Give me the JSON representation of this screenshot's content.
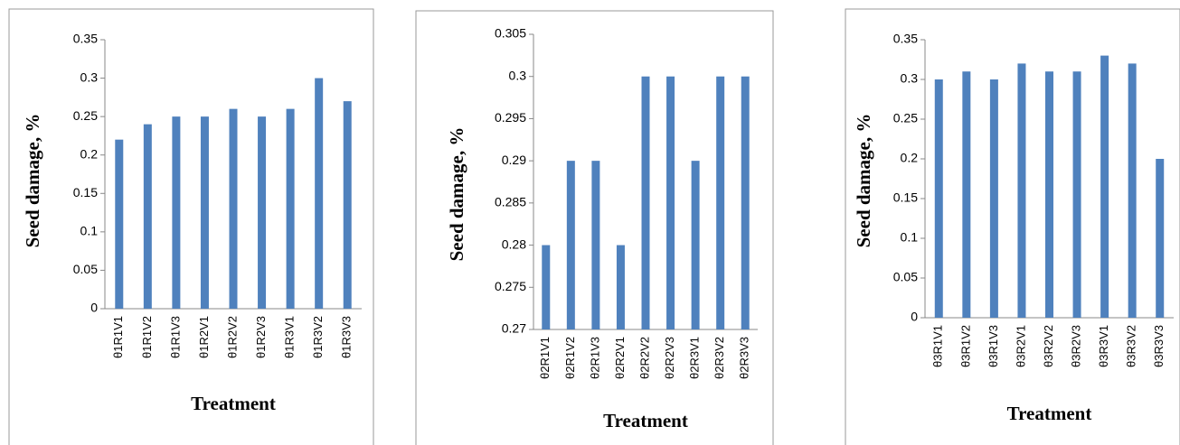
{
  "chart_data": [
    {
      "type": "bar",
      "y_label": "Seed damage, %",
      "x_label": "Treatment",
      "color": "#4f81bd",
      "categories": [
        "θ1R1V1",
        "θ1R1V2",
        "θ1R1V3",
        "θ1R2V1",
        "θ1R2V2",
        "θ1R2V3",
        "θ1R3V1",
        "θ1R3V2",
        "θ1R3V3"
      ],
      "values": [
        0.22,
        0.24,
        0.25,
        0.25,
        0.26,
        0.25,
        0.26,
        0.3,
        0.27
      ],
      "ylim": [
        0,
        0.35
      ],
      "yticks": [
        0,
        0.05,
        0.1,
        0.15,
        0.2,
        0.25,
        0.3,
        0.35
      ],
      "grid": false
    },
    {
      "type": "bar",
      "y_label": "Seed damage, %",
      "x_label": "Treatment",
      "color": "#4f81bd",
      "categories": [
        "θ2R1V1",
        "θ2R1V2",
        "θ2R1V3",
        "θ2R2V1",
        "θ2R2V2",
        "θ2R2V3",
        "θ2R3V1",
        "θ2R3V2",
        "θ2R3V3"
      ],
      "values": [
        0.28,
        0.29,
        0.29,
        0.28,
        0.3,
        0.3,
        0.29,
        0.3,
        0.3
      ],
      "ylim": [
        0.27,
        0.305
      ],
      "yticks": [
        0.27,
        0.275,
        0.28,
        0.285,
        0.29,
        0.295,
        0.3,
        0.305
      ],
      "grid": false
    },
    {
      "type": "bar",
      "y_label": "Seed damage, %",
      "x_label": "Treatment",
      "color": "#4f81bd",
      "categories": [
        "θ3R1V1",
        "θ3R1V2",
        "θ3R1V3",
        "θ3R2V1",
        "θ3R2V2",
        "θ3R2V3",
        "θ3R3V1",
        "θ3R3V2",
        "θ3R3V3"
      ],
      "values": [
        0.3,
        0.31,
        0.3,
        0.32,
        0.31,
        0.31,
        0.33,
        0.32,
        0.2
      ],
      "ylim": [
        0,
        0.35
      ],
      "yticks": [
        0,
        0.05,
        0.1,
        0.15,
        0.2,
        0.25,
        0.3,
        0.35
      ],
      "grid": false
    }
  ]
}
